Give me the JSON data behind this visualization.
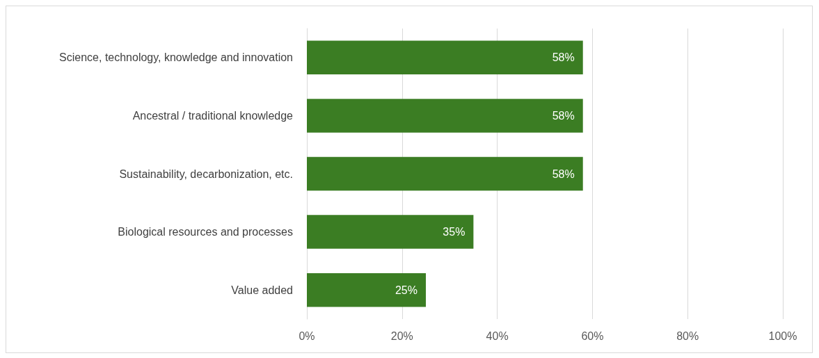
{
  "chart_data": {
    "type": "bar",
    "orientation": "horizontal",
    "categories": [
      "Science, technology, knowledge and innovation",
      "Ancestral / traditional knowledge",
      "Sustainability, decarbonization, etc.",
      "Biological resources and processes",
      "Value added"
    ],
    "values": [
      58,
      58,
      58,
      35,
      25
    ],
    "value_labels": [
      "58%",
      "58%",
      "58%",
      "35%",
      "25%"
    ],
    "color": "#3b7d23",
    "xlim": [
      0,
      100
    ],
    "xticks": [
      {
        "value": 0,
        "label": "0%"
      },
      {
        "value": 20,
        "label": "20%"
      },
      {
        "value": 40,
        "label": "40%"
      },
      {
        "value": 60,
        "label": "60%"
      },
      {
        "value": 80,
        "label": "80%"
      },
      {
        "value": 100,
        "label": "100%"
      }
    ],
    "grid": "x"
  }
}
